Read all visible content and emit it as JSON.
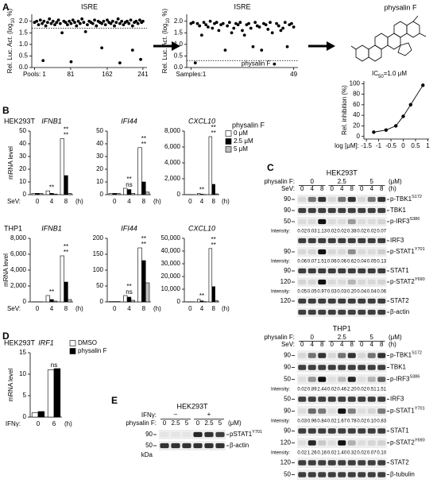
{
  "panel_labels": [
    "A",
    "B",
    "C",
    "D",
    "E"
  ],
  "chart_data": [
    {
      "type": "scatter",
      "title": "ISRE",
      "y_label": [
        "Rel. Luc. Act. (log",
        "10",
        " %)"
      ],
      "x": [
        1,
        6,
        10,
        14,
        18,
        22,
        26,
        30,
        34,
        38,
        42,
        46,
        50,
        54,
        58,
        62,
        66,
        70,
        74,
        78,
        82,
        86,
        90,
        94,
        98,
        102,
        106,
        110,
        114,
        118,
        122,
        126,
        130,
        134,
        138,
        142,
        146,
        150,
        154,
        158,
        162,
        166,
        170,
        174,
        178,
        182,
        186,
        190,
        194,
        198,
        202,
        206,
        210,
        214,
        218,
        222,
        226,
        230,
        234,
        238,
        241,
        20,
        82,
        150,
        190,
        218,
        236
      ],
      "values": [
        1.95,
        2.0,
        1.85,
        2.05,
        1.9,
        2.0,
        1.8,
        1.95,
        2.1,
        1.9,
        2.0,
        1.85,
        1.95,
        2.05,
        1.9,
        1.5,
        2.0,
        1.95,
        1.85,
        2.0,
        1.9,
        2.05,
        1.95,
        1.8,
        2.0,
        1.9,
        2.1,
        1.95,
        1.55,
        1.85,
        2.0,
        1.95,
        1.9,
        2.05,
        1.8,
        2.0,
        1.95,
        1.9,
        2.0,
        1.85,
        2.05,
        1.95,
        1.9,
        2.0,
        1.8,
        1.95,
        2.1,
        1.9,
        2.0,
        1.85,
        1.95,
        2.0,
        1.9,
        2.05,
        1.8,
        1.95,
        2.0,
        1.9,
        2.05,
        1.95,
        2.0,
        0.3,
        0.25,
        0.85,
        0.2,
        0.75,
        0.35
      ],
      "threshold": 1.7,
      "xlim": [
        -5,
        250
      ],
      "ylim": [
        0,
        2.3
      ],
      "xticks": [
        {
          "value": 1,
          "label": "Pools: 1"
        },
        81,
        162,
        241
      ],
      "yticks": [
        {
          "value": 0,
          "label": "0.0"
        },
        0.5,
        {
          "value": 1,
          "label": "1.0"
        },
        1.5,
        {
          "value": 2,
          "label": "2.0"
        }
      ]
    },
    {
      "type": "scatter",
      "title": "ISRE",
      "y_label": [
        "Rel. Luc. Act. (log",
        "10",
        " %)"
      ],
      "annotation": "physalin F",
      "x": [
        1,
        2,
        3,
        4,
        5,
        6,
        7,
        8,
        9,
        10,
        11,
        12,
        13,
        14,
        15,
        16,
        17,
        18,
        19,
        20,
        21,
        22,
        23,
        24,
        25,
        26,
        27,
        28,
        29,
        30,
        31,
        32,
        33,
        34,
        35,
        36,
        37,
        38,
        39,
        40,
        41,
        42,
        43,
        44,
        45,
        46,
        47,
        48,
        49
      ],
      "values": [
        1.9,
        1.95,
        0.2,
        1.9,
        1.8,
        1.4,
        1.95,
        1.85,
        1.75,
        2.0,
        1.7,
        1.9,
        1.95,
        1.6,
        1.85,
        1.9,
        0.75,
        1.8,
        1.95,
        1.5,
        1.7,
        1.9,
        1.85,
        1.95,
        1.6,
        1.4,
        1.85,
        1.9,
        1.7,
        0.9,
        1.95,
        1.8,
        1.75,
        0.75,
        1.9,
        1.85,
        1.65,
        1.95,
        1.5,
        0.15,
        1.9,
        1.8,
        1.6,
        1.7,
        1.95,
        0.9,
        1.85,
        1.9,
        1.75
      ],
      "threshold": 0.3,
      "xlim": [
        -1,
        51
      ],
      "ylim": [
        0,
        2.3
      ],
      "xticks": [
        {
          "value": 1,
          "label": "Samples:1"
        },
        49
      ],
      "yticks": [
        {
          "value": 0,
          "label": "0.0"
        },
        0.5,
        {
          "value": 1,
          "label": "1.0"
        },
        1.5,
        {
          "value": 2,
          "label": "2.0"
        }
      ]
    },
    {
      "type": "scatter",
      "title": "physalin F",
      "annotation": [
        "IC",
        "50",
        "=1.0 μM"
      ],
      "line": true,
      "y_label": "Rel. inhibition (%)",
      "x_label": "log [μM]:",
      "x": [
        -1.2,
        -0.7,
        -0.3,
        0,
        0.3,
        0.8
      ],
      "values": [
        8,
        12,
        20,
        38,
        60,
        97
      ],
      "xlim": [
        -1.6,
        1.05
      ],
      "ylim": [
        -5,
        105
      ],
      "xticks": [
        -1.5,
        -1,
        -0.5,
        0,
        0.5,
        1
      ],
      "yticks": [
        0,
        20,
        40,
        60,
        80,
        100
      ]
    },
    {
      "type": "bar",
      "cell_line": "HEK293T",
      "title": "IFNB1",
      "y_label": "mRNA level",
      "x_label": "SeV:",
      "x_unit": "(h)",
      "categories": [
        0,
        4,
        8
      ],
      "ylim": [
        0,
        50
      ],
      "yticks": [
        0,
        10,
        20,
        30,
        40,
        50
      ],
      "series": [
        {
          "name": "0 μM",
          "color": "#ffffff",
          "values": [
            1,
            3,
            44
          ]
        },
        {
          "name": "2.5 μM",
          "color": "#000000",
          "values": [
            1,
            1,
            15
          ]
        },
        {
          "name": "5 μM",
          "color": "#bfbfbf",
          "values": [
            1,
            0.5,
            1
          ]
        }
      ],
      "sig": [
        [],
        [
          "**"
        ],
        [
          "**",
          "**"
        ]
      ]
    },
    {
      "type": "bar",
      "title": "IFI44",
      "x_unit": "(h)",
      "categories": [
        0,
        4,
        8
      ],
      "ylim": [
        0,
        50
      ],
      "yticks": [
        0,
        10,
        20,
        30,
        40,
        50
      ],
      "series": [
        {
          "name": "0 μM",
          "color": "#ffffff",
          "values": [
            1,
            5,
            37
          ]
        },
        {
          "name": "2.5 μM",
          "color": "#000000",
          "values": [
            1,
            4,
            10
          ]
        },
        {
          "name": "5 μM",
          "color": "#bfbfbf",
          "values": [
            1,
            1,
            2
          ]
        }
      ],
      "sig": [
        [],
        [
          "ns",
          "**"
        ],
        [
          "**",
          "**"
        ]
      ]
    },
    {
      "type": "bar",
      "title": "CXCL10",
      "x_unit": "(h)",
      "categories": [
        0,
        4,
        8
      ],
      "ylim": [
        0,
        8000
      ],
      "yticks": [
        0,
        {
          "value": 2000,
          "label": "2,000"
        },
        {
          "value": 4000,
          "label": "4,000"
        },
        {
          "value": 6000,
          "label": "6,000"
        },
        {
          "value": 8000,
          "label": "8,000"
        }
      ],
      "series": [
        {
          "name": "0 μM",
          "color": "#ffffff",
          "values": [
            10,
            150,
            7300
          ]
        },
        {
          "name": "2.5 μM",
          "color": "#000000",
          "values": [
            10,
            60,
            1300
          ]
        },
        {
          "name": "5 μM",
          "color": "#bfbfbf",
          "values": [
            10,
            20,
            100
          ]
        }
      ],
      "sig": [
        [],
        [
          "**"
        ],
        [
          "**",
          "**"
        ]
      ],
      "legend": true,
      "legend_title": "physalin F"
    },
    {
      "type": "bar",
      "cell_line": "THP1",
      "title": "IFNB1",
      "y_label": "mRNA level",
      "x_label": "SeV:",
      "x_unit": "(h)",
      "categories": [
        0,
        4,
        8
      ],
      "ylim": [
        0,
        8000
      ],
      "yticks": [
        0,
        {
          "value": 2000,
          "label": "2,000"
        },
        {
          "value": 4000,
          "label": "4,000"
        },
        {
          "value": 6000,
          "label": "6,000"
        },
        {
          "value": 8000,
          "label": "8,000"
        }
      ],
      "series": [
        {
          "name": "0 μM",
          "color": "#ffffff",
          "values": [
            10,
            800,
            5800
          ]
        },
        {
          "name": "2.5 μM",
          "color": "#000000",
          "values": [
            10,
            300,
            2500
          ]
        },
        {
          "name": "5 μM",
          "color": "#bfbfbf",
          "values": [
            10,
            100,
            300
          ]
        }
      ],
      "sig": [
        [],
        [
          "**"
        ],
        [
          "**",
          "**"
        ]
      ]
    },
    {
      "type": "bar",
      "title": "IFI44",
      "x_unit": "(h)",
      "categories": [
        0,
        4,
        8
      ],
      "ylim": [
        0,
        200
      ],
      "yticks": [
        0,
        50,
        100,
        150,
        200
      ],
      "series": [
        {
          "name": "0 μM",
          "color": "#ffffff",
          "values": [
            1,
            20,
            170
          ]
        },
        {
          "name": "2.5 μM",
          "color": "#000000",
          "values": [
            1,
            15,
            130
          ]
        },
        {
          "name": "5 μM",
          "color": "#bfbfbf",
          "values": [
            1,
            5,
            60
          ]
        }
      ],
      "sig": [
        [],
        [
          "ns",
          "**"
        ],
        [
          "**",
          "**"
        ]
      ]
    },
    {
      "type": "bar",
      "title": "CXCL10",
      "x_unit": "(h)",
      "categories": [
        0,
        4,
        8
      ],
      "ylim": [
        0,
        50000
      ],
      "yticks": [
        0,
        {
          "value": 10000,
          "label": "10,000"
        },
        {
          "value": 20000,
          "label": "20,000"
        },
        {
          "value": 30000,
          "label": "30,000"
        },
        {
          "value": 40000,
          "label": "40,000"
        },
        {
          "value": 50000,
          "label": "50,000"
        }
      ],
      "series": [
        {
          "name": "0 μM",
          "color": "#ffffff",
          "values": [
            50,
            2000,
            42000
          ]
        },
        {
          "name": "2.5 μM",
          "color": "#000000",
          "values": [
            50,
            800,
            12000
          ]
        },
        {
          "name": "5 μM",
          "color": "#bfbfbf",
          "values": [
            50,
            200,
            1000
          ]
        }
      ],
      "sig": [
        [],
        [
          "**"
        ],
        [
          "**",
          "**"
        ]
      ]
    },
    {
      "type": "bar",
      "cell_line": "HEK293T",
      "title": "IRF1",
      "y_label": "mRNA level",
      "x_label": "IFNγ:",
      "x_unit": "(h)",
      "categories": [
        0,
        6
      ],
      "ylim": [
        0,
        15
      ],
      "yticks": [
        0,
        5,
        10,
        15
      ],
      "series": [
        {
          "name": "DMSO",
          "color": "#ffffff",
          "values": [
            1,
            11
          ]
        },
        {
          "name": "physalin F",
          "color": "#000000",
          "values": [
            1.3,
            11.3
          ]
        }
      ],
      "sig": [
        [],
        [
          "ns"
        ]
      ],
      "legend": true
    }
  ],
  "blots": [
    {
      "cell_line": "HEK293T",
      "treatment_label": "physalin F:",
      "doses": [
        0,
        2.5,
        5
      ],
      "dose_unit": "(μM)",
      "stim_label": "SeV:",
      "times": [
        0,
        4,
        8
      ],
      "time_unit": "(h)",
      "intensity_label": "Intensity:",
      "rows": [
        {
          "marker": 90,
          "name": "p-TBK1",
          "sup": "S172"
        },
        {
          "marker": 90,
          "name": "TBK1"
        },
        {
          "marker": 50,
          "name": "p-IRF3",
          "sup": "S386",
          "intensity": [
            "0.02",
            "0.03",
            "1.13",
            "0.02",
            "0.02",
            "0.38",
            "0.02",
            "0.02",
            "0.07"
          ]
        },
        {
          "name": "IRF3"
        },
        {
          "marker": 90,
          "name": "p-STAT1",
          "sup": "Y701",
          "intensity": [
            "0.06",
            "0.07",
            "1.51",
            "0.06",
            "0.06",
            "0.62",
            "0.04",
            "0.05",
            "0.13"
          ]
        },
        {
          "marker": 90,
          "name": "STAT1"
        },
        {
          "marker": 120,
          "name": "p-STAT2",
          "sup": "Y690",
          "intensity": [
            "0.05",
            "0.05",
            "0.97",
            "0.03",
            "0.03",
            "0.20",
            "0.04",
            "0.04",
            "0.06"
          ]
        },
        {
          "marker": 120,
          "name": "STAT2"
        },
        {
          "name": "β-actin"
        }
      ]
    },
    {
      "cell_line": "THP1",
      "treatment_label": "physalin F:",
      "doses": [
        0,
        2.5,
        5
      ],
      "dose_unit": "(μM)",
      "stim_label": "SeV:",
      "times": [
        0,
        4,
        8
      ],
      "time_unit": "(h)",
      "intensity_label": "Intensity:",
      "rows": [
        {
          "marker": 90,
          "name": "p-TBK1",
          "sup": "S172"
        },
        {
          "marker": 90,
          "name": "TBK1"
        },
        {
          "marker": 50,
          "name": "p-IRF3",
          "sup": "S386",
          "intensity": [
            "0.02",
            "0.89",
            "2.44",
            "0.02",
            "0.46",
            "2.20",
            "0.02",
            "0.51",
            "1.51"
          ]
        },
        {
          "marker": 50,
          "name": "IRF3"
        },
        {
          "marker": 90,
          "name": "p-STAT1",
          "sup": "Y701",
          "intensity": [
            "0.03",
            "0.96",
            "0.84",
            "0.02",
            "1.67",
            "0.78",
            "0.02",
            "0.10",
            "0.83"
          ]
        },
        {
          "marker": 90,
          "name": "STAT1"
        },
        {
          "marker": 120,
          "name": "p-STAT2",
          "sup": "Y690",
          "intensity": [
            "0.02",
            "1.26",
            "0.16",
            "0.02",
            "1.40",
            "0.32",
            "0.02",
            "0.07",
            "0.10"
          ]
        },
        {
          "marker": 120,
          "name": "STAT2"
        },
        {
          "marker": 50,
          "name": "β-tubulin"
        }
      ]
    },
    {
      "cell_line": "HEK293T",
      "stim_label": "IFNγ:",
      "stim": [
        "–",
        "+"
      ],
      "treatment_label": "physalin F:",
      "doses": [
        0,
        2.5,
        5
      ],
      "dose_unit": "(μM)",
      "mw_unit": "kDa",
      "rows": [
        {
          "marker": 90,
          "name": "pSTAT1",
          "sup": "Y701"
        },
        {
          "marker": 50,
          "name": "β-actin"
        }
      ]
    }
  ]
}
